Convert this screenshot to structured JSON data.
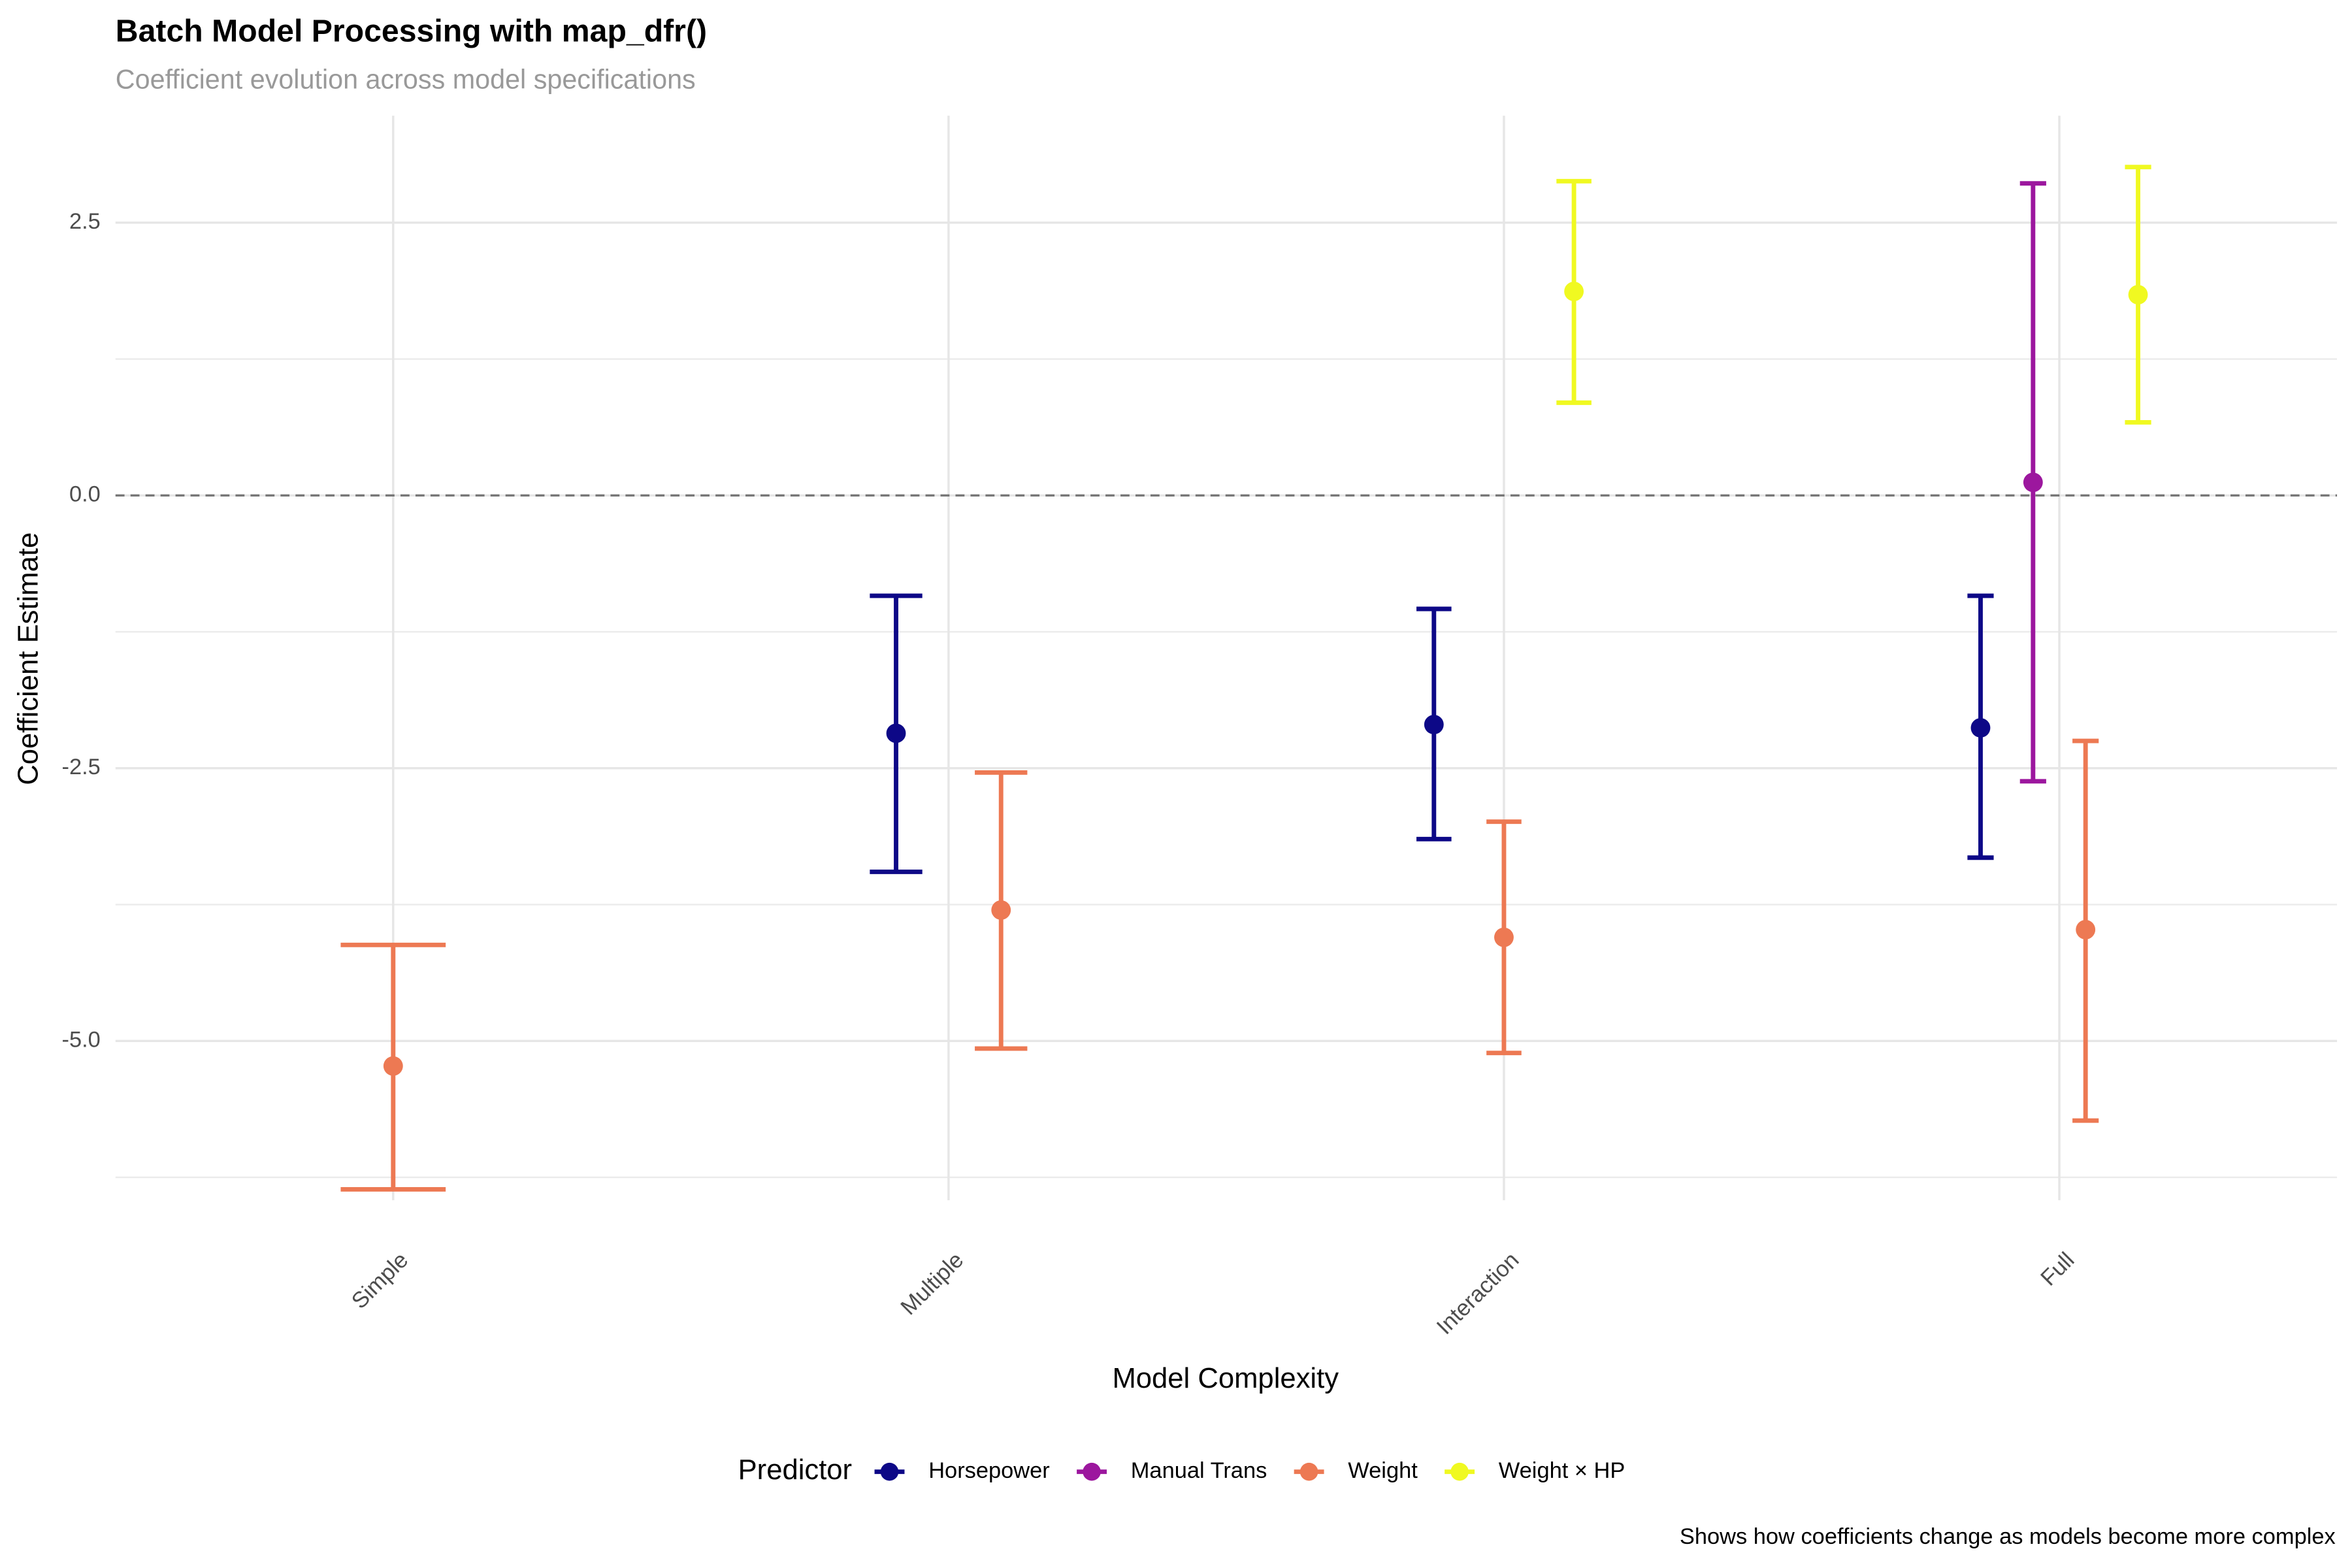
{
  "chart_data": {
    "type": "errorbar",
    "title": "Batch Model Processing with map_dfr()",
    "subtitle": "Coefficient evolution across model specifications",
    "x_label": "Model Complexity",
    "y_label": "Coefficient Estimate",
    "caption": "Shows how coefficients change as models become more complex",
    "legend_title": "Predictor",
    "legend_position": "bottom",
    "grid": true,
    "reference_line": 0,
    "categories": [
      "Simple",
      "Multiple",
      "Interaction",
      "Full"
    ],
    "ylim": [
      -6.46,
      3.48
    ],
    "yticks": [
      {
        "value": -5,
        "label": "-5.0"
      },
      {
        "value": -2.5,
        "label": "-2.5"
      },
      {
        "value": 0,
        "label": "0.0"
      },
      {
        "value": 2.5,
        "label": "2.5"
      }
    ],
    "series": [
      {
        "name": "Horsepower",
        "color": "#0d0887",
        "values": [
          null,
          -2.18,
          -2.1,
          -2.13
        ],
        "lower": [
          null,
          -3.45,
          -3.15,
          -3.32
        ],
        "upper": [
          null,
          -0.92,
          -1.04,
          -0.92
        ]
      },
      {
        "name": "Manual Trans",
        "color": "#9c179e",
        "values": [
          null,
          null,
          null,
          0.12
        ],
        "lower": [
          null,
          null,
          null,
          -2.62
        ],
        "upper": [
          null,
          null,
          null,
          2.86
        ]
      },
      {
        "name": "Weight",
        "color": "#ed7953",
        "values": [
          -5.23,
          -3.8,
          -4.05,
          -3.98
        ],
        "lower": [
          -6.36,
          -5.07,
          -5.11,
          -5.73
        ],
        "upper": [
          -4.12,
          -2.54,
          -2.99,
          -2.25
        ]
      },
      {
        "name": "Weight × HP",
        "color": "#f0f921",
        "values": [
          null,
          null,
          1.87,
          1.84
        ],
        "lower": [
          null,
          null,
          0.85,
          0.67
        ],
        "upper": [
          null,
          null,
          2.88,
          3.01
        ]
      }
    ]
  }
}
